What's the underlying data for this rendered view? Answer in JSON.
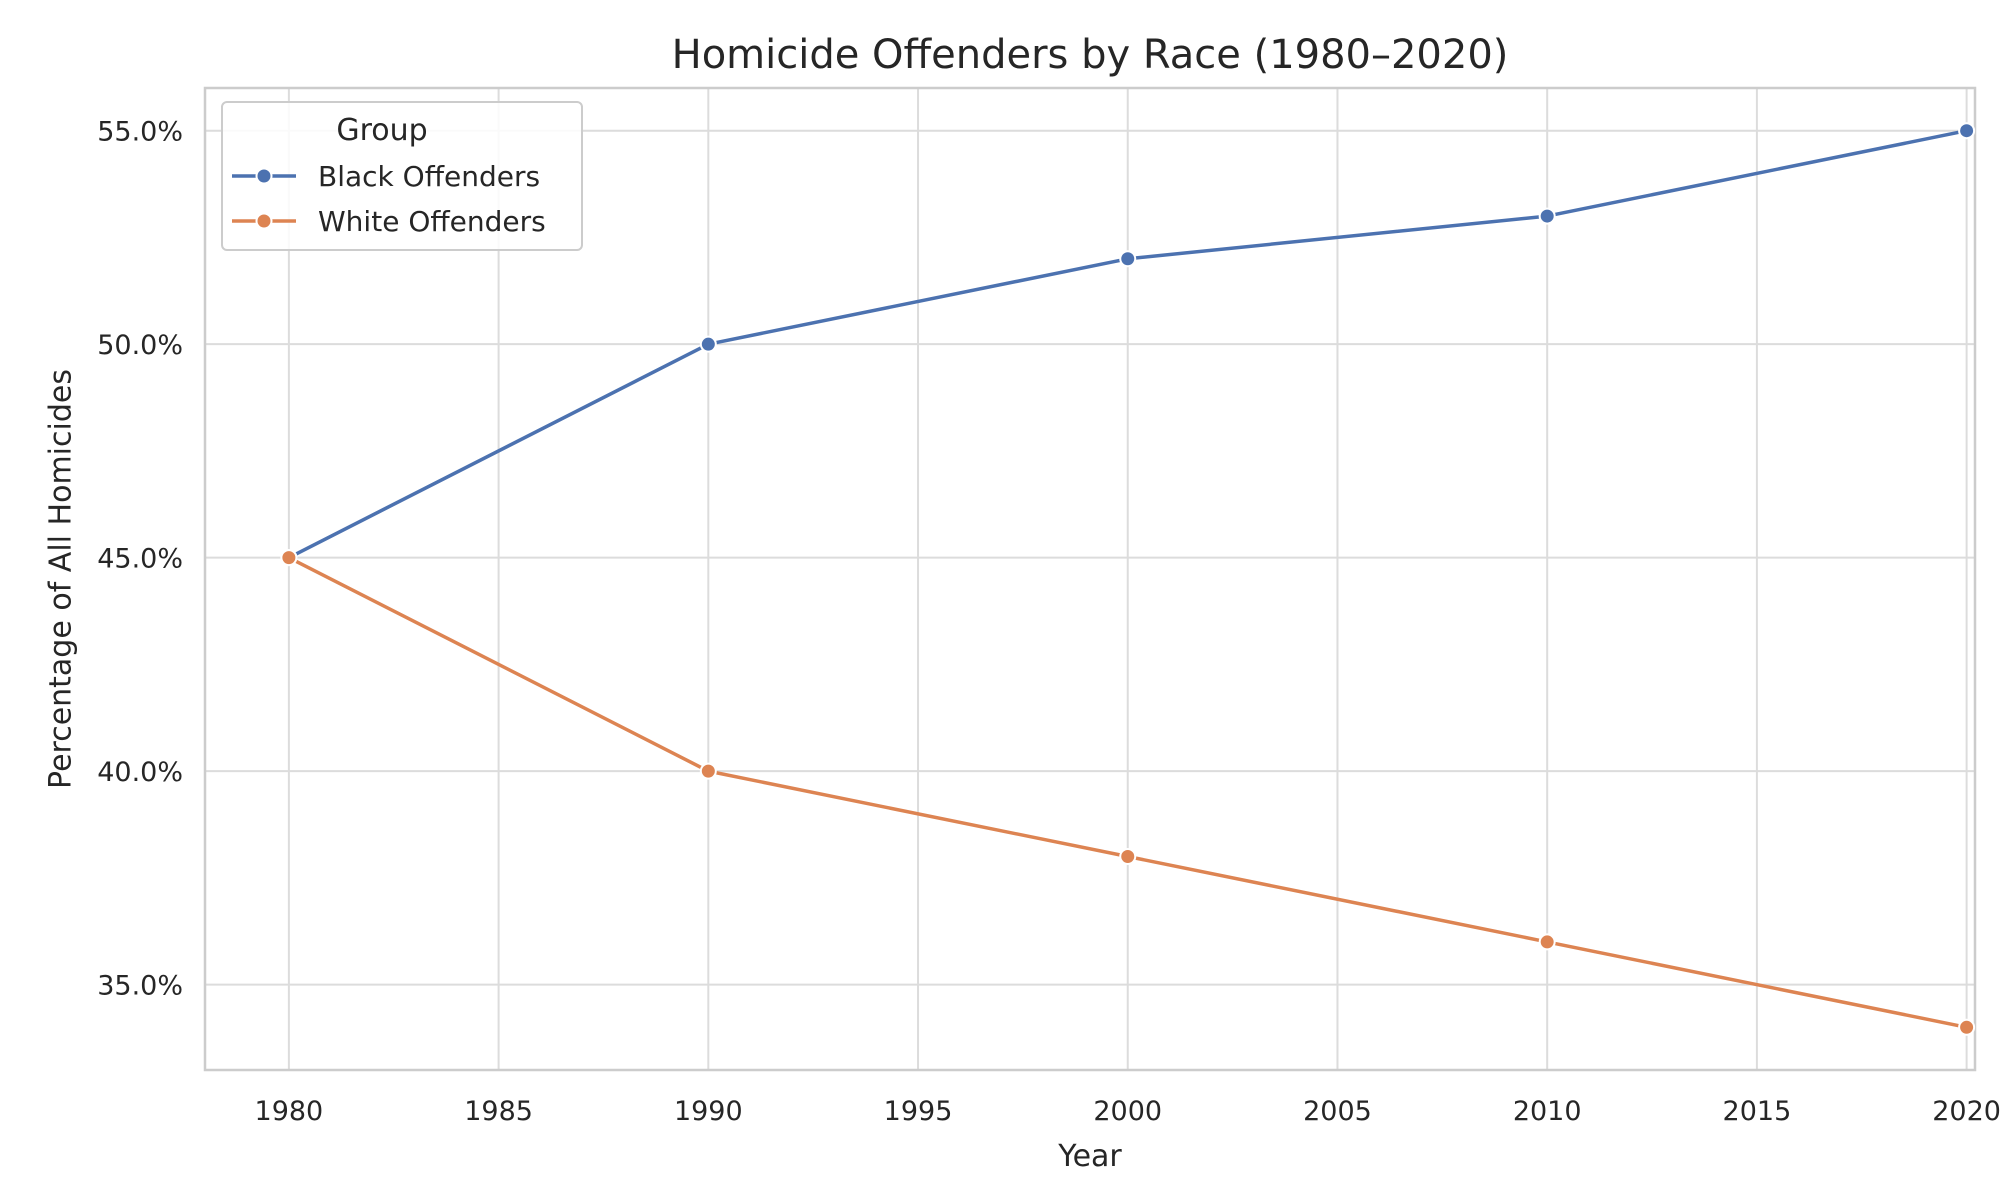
{
  "chart_data": {
    "type": "line",
    "title": "Homicide Offenders by Race (1980–2020)",
    "xlabel": "Year",
    "ylabel": "Percentage of All Homicides",
    "x": [
      1980,
      1990,
      2000,
      2010,
      2020
    ],
    "xlim": [
      1978,
      2020.2
    ],
    "ylim": [
      33,
      56
    ],
    "x_ticks": [
      1980,
      1985,
      1990,
      1995,
      2000,
      2005,
      2010,
      2015,
      2020
    ],
    "y_ticks": [
      35,
      40,
      45,
      50,
      55
    ],
    "y_tick_format": "percent_1dp",
    "grid": true,
    "legend": {
      "title": "Group",
      "placement": "top-left"
    },
    "series": [
      {
        "name": "Black Offenders",
        "color": "#4c72b0",
        "values": [
          45,
          50,
          52,
          53,
          55
        ]
      },
      {
        "name": "White Offenders",
        "color": "#dd8452",
        "values": [
          45,
          40,
          38,
          36,
          34
        ]
      }
    ]
  }
}
